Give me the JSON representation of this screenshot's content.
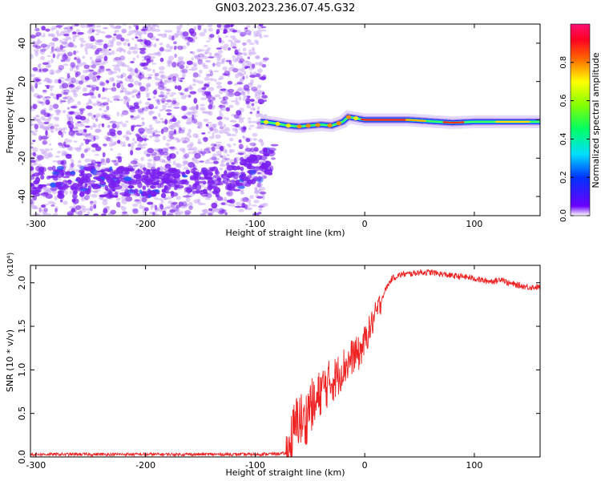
{
  "title": "GN03.2023.236.07.45.G32",
  "chart_data": [
    {
      "type": "heatmap",
      "xlabel": "Height of straight line (km)",
      "ylabel": "Frequency (Hz)",
      "xlim": [
        -305,
        160
      ],
      "ylim": [
        -50,
        50
      ],
      "x_ticks": [
        -300,
        -200,
        -100,
        0,
        100
      ],
      "y_ticks": [
        -40,
        -20,
        0,
        20,
        40
      ],
      "colorbar": {
        "label": "Normalized spectral amplitude",
        "range": [
          0.0,
          1.0
        ],
        "ticks": [
          0.0,
          0.2,
          0.4,
          0.6,
          0.8
        ],
        "tick_labels": [
          "0.0",
          "0.2",
          "0.4",
          "0.6",
          "0.8"
        ]
      },
      "features": {
        "noise_region_x": [
          -305,
          -90
        ],
        "low_freq_band_hz": [
          -40,
          -25
        ],
        "signal_start_x": -95,
        "signal_center_freq_hz": [
          [
            -92,
            -1
          ],
          [
            -80,
            -2
          ],
          [
            -70,
            -3
          ],
          [
            -60,
            -3.5
          ],
          [
            -50,
            -3
          ],
          [
            -40,
            -2.5
          ],
          [
            -30,
            -3
          ],
          [
            -20,
            -1
          ],
          [
            -15,
            1.5
          ],
          [
            -10,
            1
          ],
          [
            0,
            0
          ],
          [
            40,
            0
          ],
          [
            80,
            -1.5
          ],
          [
            100,
            -1
          ],
          [
            160,
            -1
          ]
        ]
      }
    },
    {
      "type": "line",
      "xlabel": "Height of straight line (km)",
      "ylabel": "SNR (10 * v/v)",
      "y_multiplier": "(x10⁴)",
      "xlim": [
        -305,
        160
      ],
      "ylim": [
        0.0,
        2.2
      ],
      "x_ticks": [
        -300,
        -200,
        -100,
        0,
        100
      ],
      "y_ticks": [
        0.0,
        0.5,
        1.0,
        1.5,
        2.0
      ],
      "y_tick_labels": [
        "0.0",
        "0.5",
        "1.0",
        "1.5",
        "2.0"
      ],
      "series": [
        {
          "color": "#ee2222",
          "x": [
            -305,
            -200,
            -100,
            -70,
            -65,
            -60,
            -55,
            -50,
            -45,
            -40,
            -35,
            -30,
            -25,
            -20,
            -15,
            -10,
            -5,
            0,
            5,
            10,
            15,
            20,
            25,
            30,
            35,
            40,
            50,
            60,
            70,
            80,
            90,
            100,
            110,
            120,
            125,
            130,
            140,
            150,
            160
          ],
          "y": [
            0.03,
            0.03,
            0.03,
            0.04,
            0.3,
            0.5,
            0.4,
            0.65,
            0.6,
            0.8,
            0.85,
            0.9,
            0.95,
            1.05,
            1.1,
            1.2,
            1.2,
            1.35,
            1.5,
            1.65,
            1.8,
            1.95,
            2.05,
            2.08,
            2.1,
            2.1,
            2.12,
            2.12,
            2.1,
            2.08,
            2.07,
            2.05,
            2.02,
            2.02,
            2.05,
            2.0,
            1.97,
            1.95,
            1.95
          ]
        }
      ]
    }
  ],
  "colors": {
    "line": "#ee2222",
    "noise": "#7a1ff0",
    "noise_light": "#c9a7f5"
  }
}
